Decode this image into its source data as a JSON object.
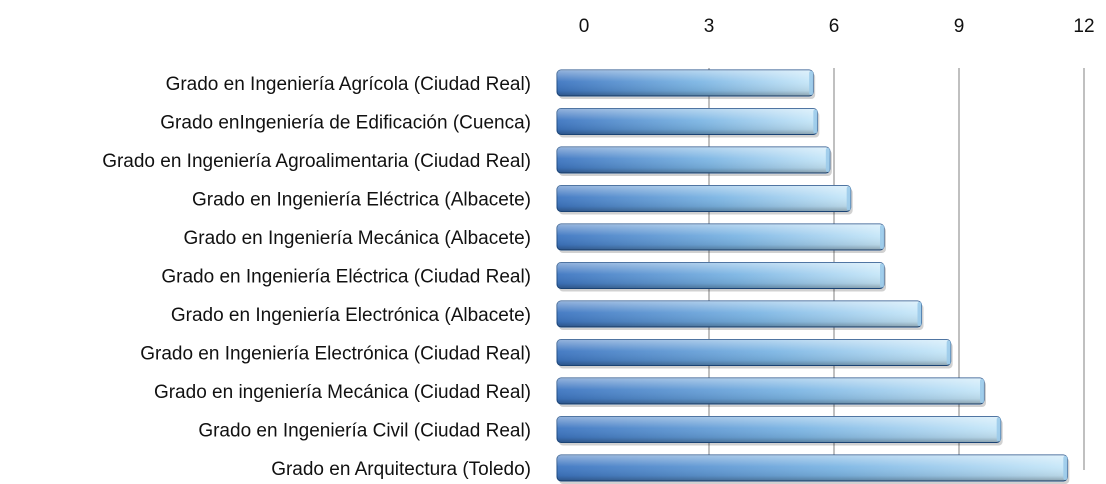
{
  "chart_data": {
    "type": "bar",
    "orientation": "horizontal",
    "categories": [
      "Grado en Ingeniería Agrícola (Ciudad Real)",
      "Grado enIngeniería de Edificación (Cuenca)",
      "Grado en Ingeniería Agroalimentaria (Ciudad Real)",
      "Grado en Ingeniería Eléctrica (Albacete)",
      "Grado en Ingeniería Mecánica (Albacete)",
      "Grado en Ingeniería Eléctrica (Ciudad Real)",
      "Grado en Ingeniería Electrónica (Albacete)",
      "Grado en Ingeniería Electrónica (Ciudad Real)",
      "Grado en ingeniería Mecánica (Ciudad Real)",
      "Grado en Ingeniería Civil (Ciudad Real)",
      "Grado en Arquitectura (Toledo)"
    ],
    "values": [
      5.5,
      5.6,
      5.9,
      6.4,
      7.2,
      7.2,
      8.1,
      8.8,
      9.6,
      10.0,
      11.6
    ],
    "xlim": [
      0,
      12
    ],
    "xticks": [
      "0",
      "3",
      "6",
      "9",
      "12"
    ],
    "axis_position": "top",
    "grid": true,
    "legend": "none",
    "colors": {
      "bar_dark": "#3f78c2",
      "bar_light": "#c4e6f8",
      "bar_edge": "#1f4e87",
      "grid": "#c0c0c0"
    }
  }
}
